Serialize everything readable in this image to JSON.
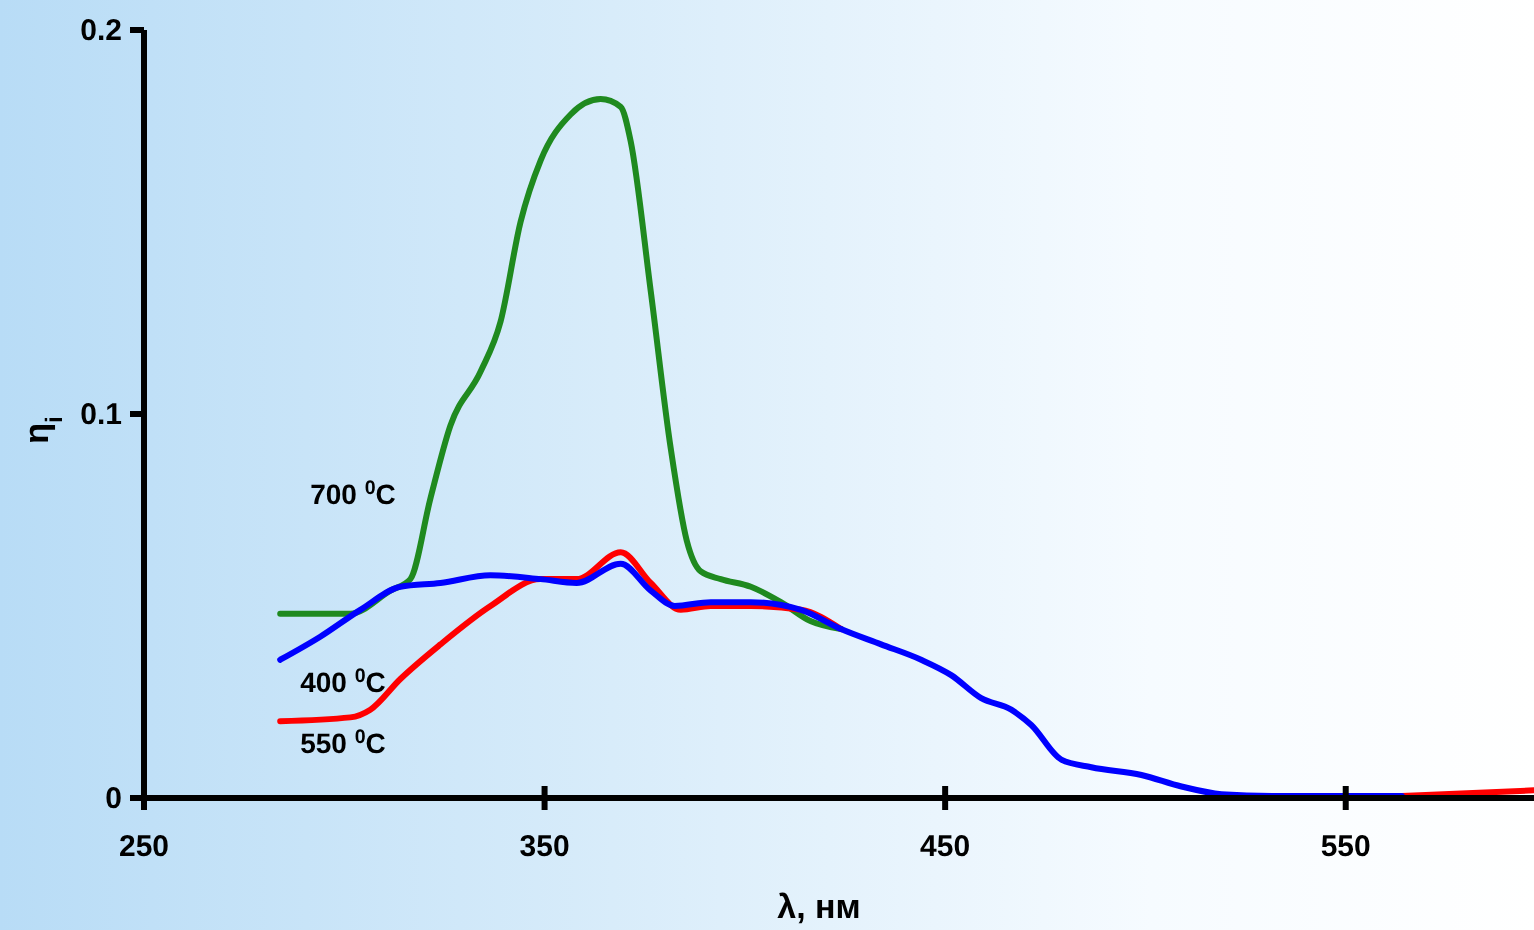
{
  "chart_data": {
    "type": "line",
    "xlabel": "λ, нм",
    "ylabel": "η$_{i}$",
    "xlim": [
      250,
      597
    ],
    "ylim": [
      0,
      0.2
    ],
    "xticks": [
      250,
      350,
      450,
      550
    ],
    "yticks": [
      0,
      0.1,
      0.2
    ],
    "grid": false,
    "marker": "none",
    "line_style": "solid",
    "series": [
      {
        "name": "700 $^{0}$C",
        "color": "#1f8a1f",
        "x": [
          284,
          301.5,
          311.5,
          316.5,
          321.5,
          326.5,
          334,
          339,
          344,
          349,
          356.5,
          364,
          369,
          371.5,
          376.5,
          381.5,
          385.5,
          389,
          394,
          401.5,
          409,
          416.5,
          424
        ],
        "values": [
          0.048,
          0.048,
          0.054,
          0.057,
          0.078,
          0.097,
          0.111,
          0.124,
          0.15,
          0.166,
          0.178,
          0.182,
          0.18,
          0.171,
          0.132,
          0.091,
          0.067,
          0.059,
          0.057,
          0.055,
          0.051,
          0.046,
          0.044
        ]
      },
      {
        "name": "550 $^{0}$C",
        "color": "#ff0000",
        "x": [
          284,
          301.5,
          306.5,
          314,
          324,
          336.5,
          349,
          358,
          369,
          376.5,
          384,
          391.5,
          401.5,
          414,
          424,
          434,
          444,
          451.5,
          459,
          466.5,
          471.5,
          479,
          486.5,
          499,
          509,
          519,
          534,
          564,
          597
        ],
        "values": [
          0.02,
          0.021,
          0.023,
          0.031,
          0.04,
          0.05,
          0.057,
          0.057,
          0.064,
          0.056,
          0.049,
          0.05,
          0.05,
          0.049,
          0.044,
          null,
          null,
          null,
          null,
          null,
          null,
          null,
          null,
          null,
          null,
          null,
          null,
          0.0005,
          0.002
        ]
      },
      {
        "name": "400 $^{0}$C",
        "color": "#0000ff",
        "x": [
          284,
          294,
          304,
          314,
          324,
          336.5,
          349,
          358,
          369,
          376.5,
          382.5,
          391.5,
          401.5,
          414,
          424,
          434,
          444,
          451.5,
          459,
          466.5,
          471.5,
          479,
          486.5,
          499,
          509,
          519,
          534,
          564
        ],
        "values": [
          0.036,
          0.042,
          0.049,
          0.055,
          0.056,
          0.058,
          0.057,
          0.056,
          0.061,
          0.054,
          0.05,
          0.051,
          0.051,
          0.049,
          0.044,
          0.04,
          0.036,
          0.032,
          0.026,
          0.023,
          0.019,
          0.01,
          0.008,
          0.006,
          0.003,
          0.001,
          0.0005,
          0.0005
        ]
      }
    ]
  }
}
